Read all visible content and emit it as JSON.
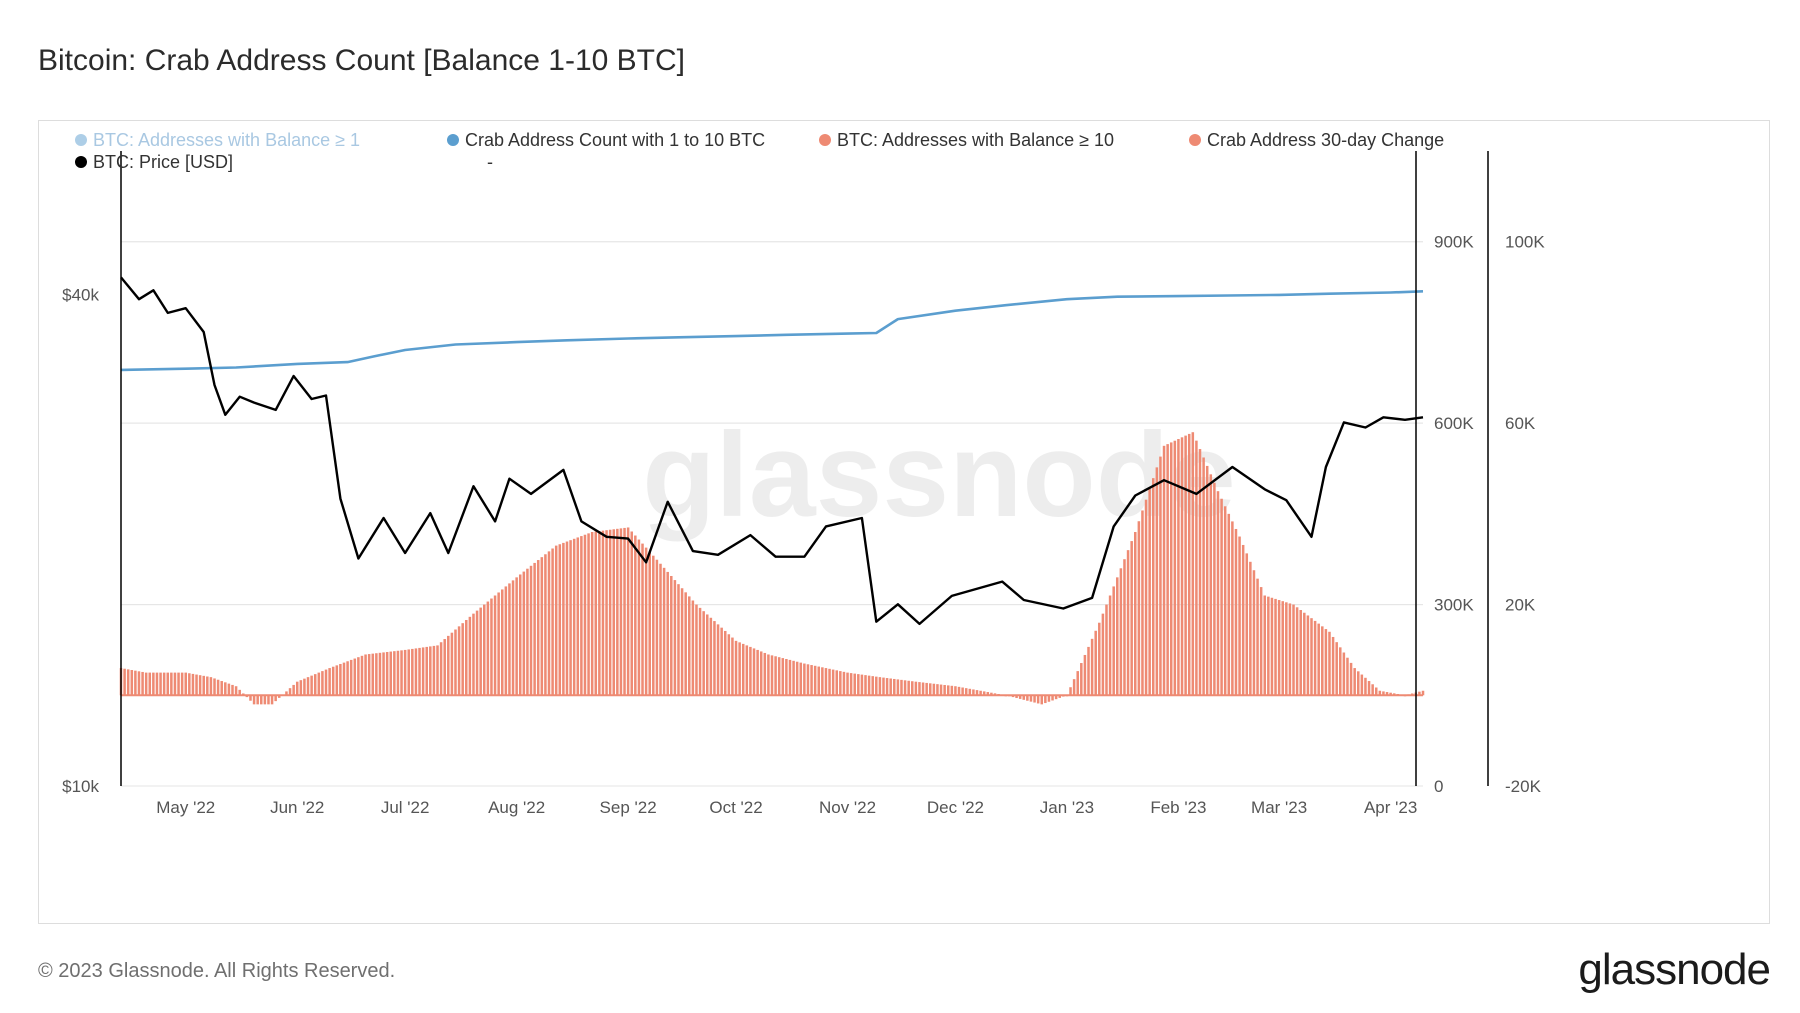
{
  "title": "Bitcoin: Crab Address Count [Balance 1-10 BTC]",
  "footer": {
    "copyright": "© 2023 Glassnode. All Rights Reserved.",
    "logo": "glassnode"
  },
  "watermark": "glassnode",
  "colors": {
    "price": "#000000",
    "crab_count": "#5b9ecf",
    "crab_change": "#ee8a73",
    "legend_faded": "#a9c8e2",
    "grid": "#e6e6e6"
  },
  "chart_data": {
    "type": "line",
    "legend": [
      {
        "label": "BTC: Addresses with Balance ≥ 1",
        "color": "#5b9ecf",
        "faded": true
      },
      {
        "label": "Crab Address Count with 1 to 10 BTC",
        "color": "#5b9ecf",
        "faded": false
      },
      {
        "label": "BTC: Addresses with Balance ≥ 10",
        "color": "#ee8a73",
        "faded": false
      },
      {
        "label": "Crab Address 30-day Change",
        "color": "#ee8a73",
        "faded": false
      },
      {
        "label": "BTC: Price [USD]",
        "color": "#000000",
        "faded": false
      },
      {
        "label": "-",
        "color": "",
        "faded": false
      }
    ],
    "x_ticks": [
      "May '22",
      "Jun '22",
      "Jul '22",
      "Aug '22",
      "Sep '22",
      "Oct '22",
      "Nov '22",
      "Dec '22",
      "Jan '23",
      "Feb '23",
      "Mar '23",
      "Apr '23"
    ],
    "x_range": [
      "2022-04-13",
      "2023-04-10"
    ],
    "y_price": {
      "ticks": [
        "$10k",
        "$40k"
      ],
      "scale": "log",
      "range": [
        10000,
        60000
      ]
    },
    "y_count": {
      "ticks": [
        "0",
        "300K",
        "600K",
        "900K"
      ],
      "range": [
        0,
        1050000
      ]
    },
    "y_change": {
      "ticks": [
        "-20K",
        "20K",
        "60K",
        "100K"
      ],
      "range": [
        -20000,
        120000
      ]
    },
    "series": [
      {
        "name": "Crab Address Count with 1 to 10 BTC",
        "axis": "count",
        "points": [
          [
            "2022-04-13",
            688000
          ],
          [
            "2022-05-01",
            690000
          ],
          [
            "2022-05-15",
            692000
          ],
          [
            "2022-06-01",
            698000
          ],
          [
            "2022-06-15",
            701000
          ],
          [
            "2022-06-22",
            710000
          ],
          [
            "2022-07-01",
            721000
          ],
          [
            "2022-07-15",
            730000
          ],
          [
            "2022-08-01",
            734000
          ],
          [
            "2022-08-15",
            737000
          ],
          [
            "2022-09-01",
            740000
          ],
          [
            "2022-09-15",
            742000
          ],
          [
            "2022-10-01",
            744000
          ],
          [
            "2022-10-15",
            746000
          ],
          [
            "2022-11-01",
            748000
          ],
          [
            "2022-11-09",
            749000
          ],
          [
            "2022-11-15",
            772000
          ],
          [
            "2022-12-01",
            786000
          ],
          [
            "2022-12-15",
            795000
          ],
          [
            "2023-01-01",
            805000
          ],
          [
            "2023-01-15",
            809000
          ],
          [
            "2023-02-01",
            810000
          ],
          [
            "2023-02-15",
            811000
          ],
          [
            "2023-03-01",
            812000
          ],
          [
            "2023-03-15",
            814000
          ],
          [
            "2023-04-01",
            816000
          ],
          [
            "2023-04-10",
            818000
          ]
        ]
      },
      {
        "name": "Crab Address 30-day Change",
        "axis": "change",
        "type": "bar",
        "points": [
          [
            "2022-04-13",
            6000
          ],
          [
            "2022-04-20",
            5000
          ],
          [
            "2022-05-01",
            5000
          ],
          [
            "2022-05-08",
            4000
          ],
          [
            "2022-05-15",
            2000
          ],
          [
            "2022-05-20",
            -2000
          ],
          [
            "2022-05-25",
            -2000
          ],
          [
            "2022-06-01",
            3000
          ],
          [
            "2022-06-10",
            6000
          ],
          [
            "2022-06-20",
            9000
          ],
          [
            "2022-07-01",
            10000
          ],
          [
            "2022-07-10",
            11000
          ],
          [
            "2022-07-20",
            18000
          ],
          [
            "2022-08-01",
            26000
          ],
          [
            "2022-08-12",
            33000
          ],
          [
            "2022-08-22",
            36000
          ],
          [
            "2022-09-01",
            37000
          ],
          [
            "2022-09-10",
            29000
          ],
          [
            "2022-09-20",
            20000
          ],
          [
            "2022-10-01",
            12000
          ],
          [
            "2022-10-10",
            9000
          ],
          [
            "2022-10-20",
            7000
          ],
          [
            "2022-11-01",
            5000
          ],
          [
            "2022-11-10",
            4000
          ],
          [
            "2022-11-20",
            3000
          ],
          [
            "2022-12-01",
            2000
          ],
          [
            "2022-12-15",
            0
          ],
          [
            "2022-12-25",
            -2000
          ],
          [
            "2023-01-01",
            0
          ],
          [
            "2023-01-10",
            16000
          ],
          [
            "2023-01-20",
            36000
          ],
          [
            "2023-01-28",
            55000
          ],
          [
            "2023-02-05",
            58000
          ],
          [
            "2023-02-12",
            45000
          ],
          [
            "2023-02-18",
            35000
          ],
          [
            "2023-02-25",
            22000
          ],
          [
            "2023-03-05",
            20000
          ],
          [
            "2023-03-15",
            14000
          ],
          [
            "2023-03-22",
            6000
          ],
          [
            "2023-03-29",
            1000
          ],
          [
            "2023-04-05",
            0
          ],
          [
            "2023-04-10",
            1000
          ]
        ]
      },
      {
        "name": "BTC: Price [USD]",
        "axis": "price",
        "points": [
          [
            "2022-04-13",
            42000
          ],
          [
            "2022-04-18",
            39500
          ],
          [
            "2022-04-22",
            40500
          ],
          [
            "2022-04-26",
            38000
          ],
          [
            "2022-05-01",
            38500
          ],
          [
            "2022-05-06",
            36000
          ],
          [
            "2022-05-09",
            31000
          ],
          [
            "2022-05-12",
            28500
          ],
          [
            "2022-05-16",
            30000
          ],
          [
            "2022-05-20",
            29500
          ],
          [
            "2022-05-26",
            28900
          ],
          [
            "2022-05-31",
            31800
          ],
          [
            "2022-06-05",
            29800
          ],
          [
            "2022-06-09",
            30100
          ],
          [
            "2022-06-13",
            22500
          ],
          [
            "2022-06-18",
            19000
          ],
          [
            "2022-06-25",
            21300
          ],
          [
            "2022-07-01",
            19300
          ],
          [
            "2022-07-08",
            21600
          ],
          [
            "2022-07-13",
            19300
          ],
          [
            "2022-07-20",
            23300
          ],
          [
            "2022-07-26",
            21100
          ],
          [
            "2022-07-30",
            23800
          ],
          [
            "2022-08-05",
            22800
          ],
          [
            "2022-08-14",
            24400
          ],
          [
            "2022-08-19",
            21100
          ],
          [
            "2022-08-26",
            20200
          ],
          [
            "2022-09-01",
            20100
          ],
          [
            "2022-09-06",
            18800
          ],
          [
            "2022-09-12",
            22300
          ],
          [
            "2022-09-19",
            19400
          ],
          [
            "2022-09-26",
            19200
          ],
          [
            "2022-10-05",
            20300
          ],
          [
            "2022-10-12",
            19100
          ],
          [
            "2022-10-20",
            19100
          ],
          [
            "2022-10-26",
            20800
          ],
          [
            "2022-11-05",
            21300
          ],
          [
            "2022-11-09",
            15900
          ],
          [
            "2022-11-15",
            16700
          ],
          [
            "2022-11-21",
            15800
          ],
          [
            "2022-11-30",
            17100
          ],
          [
            "2022-12-14",
            17800
          ],
          [
            "2022-12-20",
            16900
          ],
          [
            "2022-12-31",
            16500
          ],
          [
            "2023-01-08",
            17000
          ],
          [
            "2023-01-14",
            20800
          ],
          [
            "2023-01-20",
            22700
          ],
          [
            "2023-01-28",
            23700
          ],
          [
            "2023-02-06",
            22800
          ],
          [
            "2023-02-16",
            24600
          ],
          [
            "2023-02-25",
            23100
          ],
          [
            "2023-03-03",
            22400
          ],
          [
            "2023-03-10",
            20200
          ],
          [
            "2023-03-14",
            24600
          ],
          [
            "2023-03-19",
            27900
          ],
          [
            "2023-03-25",
            27500
          ],
          [
            "2023-03-30",
            28300
          ],
          [
            "2023-04-05",
            28100
          ],
          [
            "2023-04-10",
            28300
          ]
        ]
      }
    ]
  }
}
